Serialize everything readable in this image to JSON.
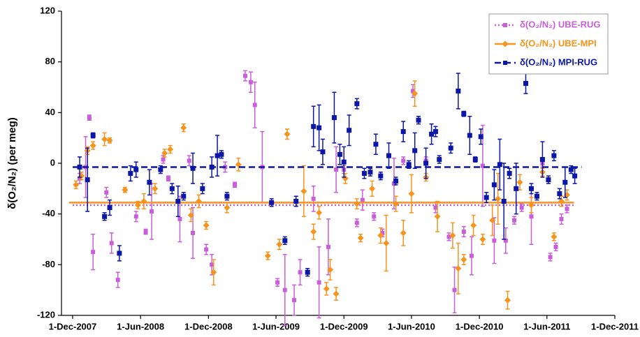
{
  "chart_data": {
    "type": "scatter",
    "y_label": "δ(O₂/N₂) (per meg)",
    "xlim": [
      "2007-11-01",
      "2011-12-01"
    ],
    "xticks": [
      {
        "value": "2007-12-01",
        "label": "1-Dec-2007"
      },
      {
        "value": "2008-06-01",
        "label": "1-Jun-2008"
      },
      {
        "value": "2008-12-01",
        "label": "1-Dec-2008"
      },
      {
        "value": "2009-06-01",
        "label": "1-Jun-2009"
      },
      {
        "value": "2009-12-01",
        "label": "1-Dec-2009"
      },
      {
        "value": "2010-06-01",
        "label": "1-Jun-2010"
      },
      {
        "value": "2010-12-01",
        "label": "1-Dec-2010"
      },
      {
        "value": "2011-06-01",
        "label": "1-Jun-2011"
      },
      {
        "value": "2011-12-01",
        "label": "1-Dec-2011"
      }
    ],
    "ylim": [
      -120,
      120
    ],
    "yticks": [
      -120,
      -80,
      -40,
      0,
      40,
      80,
      120
    ],
    "grid": false,
    "legend": "top-right",
    "series": [
      {
        "name": "δ(O₂/N₂) UBE-RUG",
        "color": "#c85fd8",
        "marker": "square",
        "line_style": "dotted",
        "mean": -33,
        "x": [
          "2007-12-20",
          "2008-01-05",
          "2008-01-15",
          "2008-01-25",
          "2008-03-01",
          "2008-03-15",
          "2008-04-01",
          "2008-05-20",
          "2008-06-15",
          "2008-07-01",
          "2008-08-01",
          "2008-08-15",
          "2008-09-15",
          "2008-10-10",
          "2008-10-20",
          "2008-11-25",
          "2008-12-10",
          "2009-01-15",
          "2009-02-10",
          "2009-03-10",
          "2009-03-25",
          "2009-04-05",
          "2009-04-25",
          "2009-06-05",
          "2009-06-25",
          "2009-07-20",
          "2009-08-05",
          "2009-09-10",
          "2009-09-25",
          "2009-10-20",
          "2009-11-10",
          "2009-12-01",
          "2010-01-05",
          "2010-01-20",
          "2010-02-20",
          "2010-03-15",
          "2010-04-15",
          "2010-05-10",
          "2010-06-05",
          "2010-07-10",
          "2010-08-05",
          "2010-09-10",
          "2010-09-25",
          "2010-10-20",
          "2010-11-10",
          "2010-12-10",
          "2011-01-10",
          "2011-02-10",
          "2011-03-05",
          "2011-03-25",
          "2011-04-20",
          "2011-05-20",
          "2011-06-10",
          "2011-06-25",
          "2011-07-10",
          "2011-07-25"
        ],
        "values": [
          -12,
          -3,
          36,
          -70,
          -23,
          -63,
          -92,
          -42,
          -54,
          -38,
          3,
          -12,
          -44,
          2,
          -55,
          -68,
          -80,
          -3,
          -17,
          69,
          64,
          46,
          -3,
          -94,
          -100,
          -108,
          -86,
          -28,
          -94,
          -66,
          -5,
          -5,
          -47,
          -29,
          -42,
          -55,
          -16,
          2,
          57,
          2,
          -35,
          -58,
          -100,
          -54,
          -73,
          -2,
          -61,
          -61,
          -45,
          -35,
          -42,
          0,
          -74,
          -66,
          -44,
          -36
        ],
        "errors": [
          4,
          24,
          2,
          14,
          4,
          8,
          6,
          4,
          2,
          22,
          3,
          2,
          18,
          4,
          20,
          4,
          8,
          4,
          2,
          4,
          8,
          18,
          28,
          3,
          28,
          12,
          10,
          10,
          28,
          22,
          18,
          3,
          3,
          8,
          3,
          3,
          20,
          3,
          5,
          3,
          4,
          3,
          18,
          4,
          15,
          32,
          18,
          10,
          3,
          3,
          22,
          3,
          3,
          3,
          4,
          3
        ]
      },
      {
        "name": "δ(O₂/N₂) UBE-MPI",
        "color": "#f7941d",
        "marker": "diamond",
        "line_style": "solid",
        "mean": -31,
        "x": [
          "2007-12-10",
          "2007-12-25",
          "2008-01-10",
          "2008-01-25",
          "2008-02-25",
          "2008-03-10",
          "2008-04-20",
          "2008-05-25",
          "2008-06-10",
          "2008-07-10",
          "2008-08-05",
          "2008-08-20",
          "2008-09-25",
          "2008-10-15",
          "2008-11-05",
          "2008-11-25",
          "2008-12-15",
          "2009-01-20",
          "2009-02-20",
          "2009-05-10",
          "2009-06-10",
          "2009-07-01",
          "2009-08-15",
          "2009-09-10",
          "2009-09-25",
          "2009-10-15",
          "2009-10-25",
          "2009-11-10",
          "2009-12-05",
          "2010-01-05",
          "2010-01-15",
          "2010-02-15",
          "2010-03-10",
          "2010-03-25",
          "2010-04-20",
          "2010-05-10",
          "2010-06-01",
          "2010-06-10",
          "2010-07-10",
          "2010-08-10",
          "2010-09-20",
          "2010-10-05",
          "2010-10-20",
          "2010-11-15",
          "2010-12-10",
          "2011-01-05",
          "2011-01-20",
          "2011-02-15",
          "2011-03-20",
          "2011-04-20",
          "2011-05-20",
          "2011-06-20",
          "2011-07-10",
          "2011-07-25"
        ],
        "values": [
          -17,
          -10,
          10,
          14,
          19,
          18,
          -21,
          -33,
          -30,
          -20,
          8,
          11,
          28,
          -41,
          -30,
          -49,
          -86,
          -35,
          -1,
          -73,
          -64,
          23,
          -22,
          -54,
          -39,
          -99,
          -84,
          -103,
          -12,
          -32,
          -59,
          -20,
          -57,
          -63,
          -32,
          -55,
          -24,
          55,
          -11,
          -42,
          -57,
          -83,
          -76,
          -49,
          -60,
          -45,
          -28,
          -108,
          -15,
          -33,
          -7,
          -58,
          -30,
          -25
        ],
        "errors": [
          3,
          3,
          3,
          3,
          5,
          2,
          2,
          3,
          6,
          4,
          3,
          3,
          3,
          5,
          5,
          3,
          10,
          4,
          5,
          3,
          4,
          4,
          20,
          6,
          5,
          5,
          8,
          5,
          4,
          4,
          3,
          6,
          6,
          22,
          6,
          10,
          15,
          10,
          3,
          12,
          10,
          20,
          4,
          8,
          4,
          12,
          20,
          7,
          6,
          6,
          3,
          3,
          4,
          4
        ]
      },
      {
        "name": "δ(O₂/N₂) MPI-RUG",
        "color": "#0c16a6",
        "marker": "square",
        "line_style": "dashed",
        "mean": -3,
        "x": [
          "2007-12-20",
          "2008-01-10",
          "2008-01-25",
          "2008-02-25",
          "2008-03-10",
          "2008-04-05",
          "2008-05-05",
          "2008-05-20",
          "2008-06-25",
          "2008-07-25",
          "2008-08-25",
          "2008-09-10",
          "2008-09-25",
          "2008-10-20",
          "2008-11-15",
          "2008-12-10",
          "2008-12-25",
          "2009-01-05",
          "2009-01-20",
          "2009-05-20",
          "2009-06-25",
          "2009-07-25",
          "2009-08-25",
          "2009-09-10",
          "2009-09-25",
          "2009-10-05",
          "2009-11-05",
          "2009-11-20",
          "2009-12-01",
          "2009-12-15",
          "2010-01-05",
          "2010-01-25",
          "2010-02-10",
          "2010-02-25",
          "2010-03-10",
          "2010-04-01",
          "2010-04-20",
          "2010-05-10",
          "2010-05-25",
          "2010-06-10",
          "2010-06-20",
          "2010-07-10",
          "2010-07-25",
          "2010-08-05",
          "2010-08-15",
          "2010-09-15",
          "2010-10-05",
          "2010-10-20",
          "2010-11-05",
          "2010-11-20",
          "2010-12-05",
          "2010-12-20",
          "2011-01-10",
          "2011-01-25",
          "2011-02-05",
          "2011-02-20",
          "2011-03-10",
          "2011-04-05",
          "2011-04-20",
          "2011-05-05",
          "2011-05-20",
          "2011-06-05",
          "2011-06-20",
          "2011-07-05",
          "2011-07-20",
          "2011-08-05",
          "2011-08-15"
        ],
        "values": [
          -3,
          -13,
          22,
          -42,
          -35,
          -71,
          -8,
          -5,
          -15,
          -5,
          -20,
          -30,
          -26,
          -4,
          -20,
          -3,
          6,
          7,
          -26,
          -31,
          -61,
          -30,
          -86,
          29,
          28,
          9,
          36,
          7,
          1,
          26,
          47,
          -8,
          -7,
          15,
          -10,
          6,
          -14,
          25,
          -1,
          10,
          34,
          0,
          23,
          25,
          3,
          12,
          57,
          39,
          22,
          3,
          21,
          -27,
          -17,
          -1,
          -30,
          -8,
          -20,
          63,
          -20,
          -26,
          3,
          -13,
          6,
          -24,
          -15,
          -5,
          -10
        ],
        "errors": [
          8,
          25,
          2,
          3,
          6,
          6,
          6,
          6,
          10,
          3,
          4,
          12,
          3,
          12,
          4,
          8,
          16,
          3,
          3,
          3,
          3,
          4,
          3,
          16,
          18,
          10,
          20,
          8,
          12,
          12,
          4,
          4,
          3,
          8,
          3,
          10,
          3,
          8,
          3,
          14,
          3,
          12,
          8,
          4,
          3,
          4,
          14,
          2,
          15,
          2,
          6,
          4,
          12,
          20,
          30,
          4,
          20,
          8,
          4,
          3,
          14,
          3,
          4,
          4,
          12,
          3,
          6
        ]
      }
    ]
  }
}
